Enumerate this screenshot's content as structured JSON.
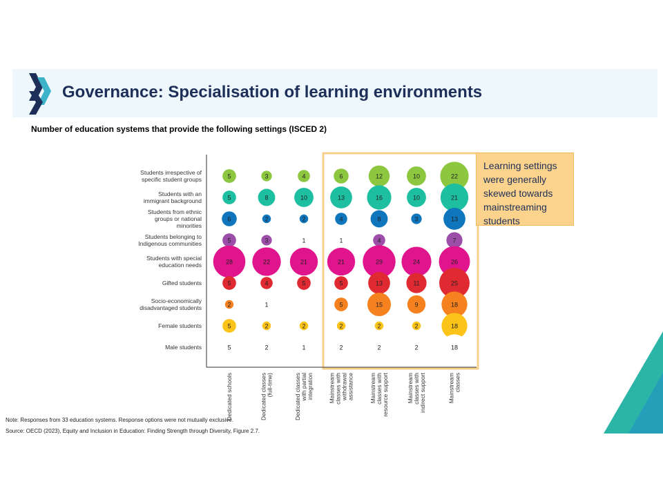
{
  "slide": {
    "title": "Governance: Specialisation of learning environments",
    "subtitle": "Number of education systems that provide the following settings (ISCED 2)",
    "callout": "Learning settings were generally skewed towards mainstreaming students",
    "note": "Note: Responses from 33 education systems. Response options were not mutually exclusive.",
    "source": "Source: OECD (2023), Equity and Inclusion in Education: Finding Strength through Diversity, Figure 2.7."
  },
  "colors": {
    "header_bg": "#eef7fb",
    "title": "#1d2f59",
    "callout_bg": "#fcd38d",
    "highlight_border": "#f7cf8d",
    "logo_dark": "#1d2f59",
    "logo_light": "#3db3c9"
  },
  "chart_data": {
    "type": "bubble-matrix",
    "columns": [
      "Dedicated schools",
      "Dedicated classes (full-time)",
      "Dedicated classes with partial integration",
      "Mainstream classes with withdrawal assistance",
      "Mainstream classes with resource support",
      "Mainstream classes with indirect support",
      "Mainstream classes"
    ],
    "rows": [
      {
        "label": "Students irrespective of specific student groups",
        "color": "#8dc63f",
        "values": [
          5,
          3,
          4,
          6,
          12,
          10,
          22
        ]
      },
      {
        "label": "Students with an immigrant background",
        "color": "#1dbfa0",
        "values": [
          5,
          8,
          10,
          13,
          16,
          10,
          21
        ]
      },
      {
        "label": "Students from ethnic groups or national minorities",
        "color": "#0f75bc",
        "values": [
          6,
          2,
          2,
          4,
          8,
          3,
          13
        ]
      },
      {
        "label": "Students belonging to Indigenous communities",
        "color": "#9b4fa8",
        "values": [
          5,
          3,
          1,
          1,
          4,
          null,
          7
        ]
      },
      {
        "label": "Students with special education needs",
        "color": "#e0148c",
        "values": [
          28,
          22,
          21,
          21,
          29,
          24,
          26
        ]
      },
      {
        "label": "Gifted students",
        "color": "#e02a32",
        "values": [
          5,
          4,
          5,
          5,
          13,
          11,
          25
        ]
      },
      {
        "label": "Socio-economically disadvantaged students",
        "color": "#f5821f",
        "values": [
          2,
          1,
          null,
          5,
          15,
          9,
          18
        ]
      },
      {
        "label": "Female students",
        "color": "#fcc419",
        "values": [
          5,
          2,
          2,
          2,
          2,
          2,
          18
        ]
      },
      {
        "label": "Male students",
        "color": "#ffffff",
        "values": [
          5,
          2,
          1,
          2,
          2,
          2,
          18
        ]
      }
    ],
    "highlighted_columns": [
      3,
      4,
      5,
      6
    ]
  }
}
